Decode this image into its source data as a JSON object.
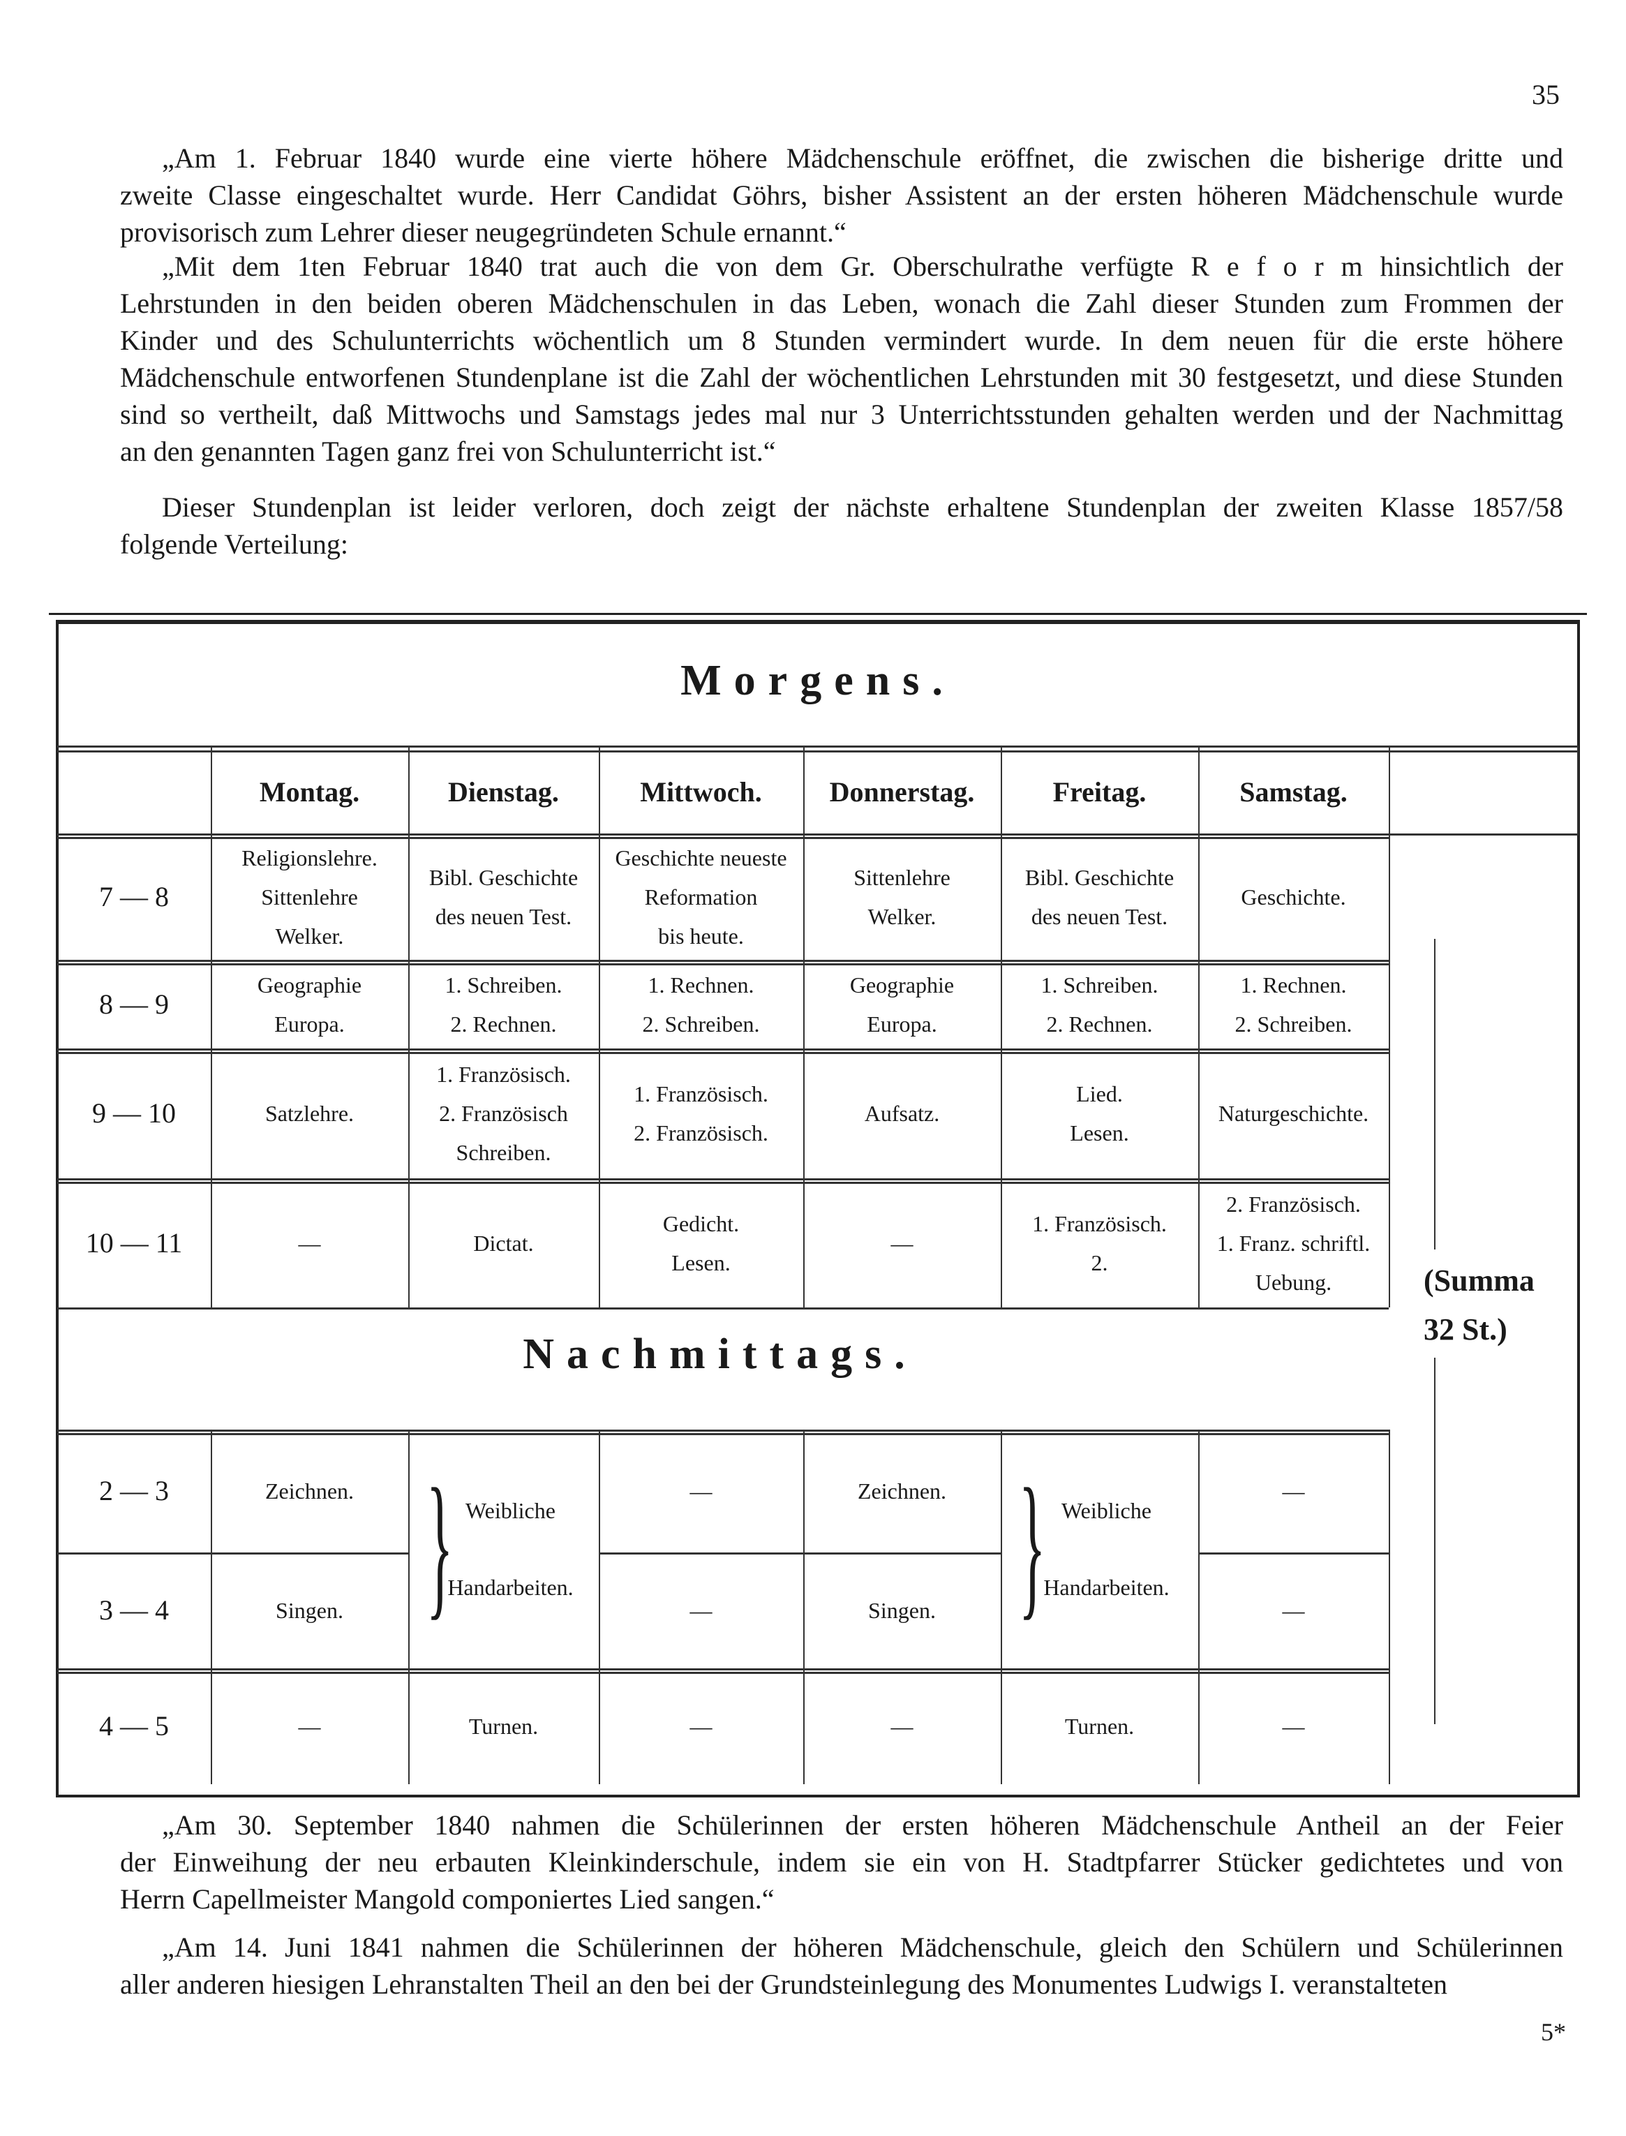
{
  "page_number": "35",
  "footer_mark": "5*",
  "paragraphs_top": [
    [
      "„Am 1. Februar 1840 wurde eine vierte höhere Mädchenschule eröffnet, die zwischen die bisherige dritte und",
      "zweite Classe eingeschaltet wurde.  Herr Candidat Göhrs, bisher Assistent an der ersten höheren Mädchenschule wurde",
      "provisorisch zum Lehrer dieser neugegründeten Schule ernannt.“"
    ],
    [
      "„Mit dem 1ten Februar 1840 trat auch die von dem Gr. Oberschulrathe verfügte R e f o r m hinsichtlich der",
      "Lehrstunden in den beiden oberen Mädchenschulen in das Leben, wonach die Zahl dieser Stunden zum Frommen der",
      "Kinder und des Schulunterrichts wöchentlich um 8 Stunden vermindert wurde. In dem neuen für die erste höhere",
      "Mädchenschule entworfenen Stundenplane ist die Zahl der wöchentlichen Lehrstunden mit 30 festgesetzt, und diese Stunden",
      "sind so vertheilt, daß Mittwochs und Samstags jedes mal nur 3 Unterrichtsstunden gehalten werden und der Nachmittag",
      "an den genannten Tagen ganz frei von Schulunterricht ist.“"
    ],
    [
      "Dieser Stundenplan ist leider verloren, doch zeigt der nächste erhaltene Stundenplan der zweiten Klasse 1857/58",
      "folgende Verteilung:"
    ]
  ],
  "paragraphs_bottom": [
    [
      "„Am 30. September 1840 nahmen die Schülerinnen der ersten höheren Mädchenschule Antheil an der Feier",
      "der Einweihung der neu erbauten Kleinkinderschule, indem sie ein von H. Stadtpfarrer Stücker gedichtetes und von",
      "Herrn Capellmeister Mangold componiertes Lied sangen.“"
    ],
    [
      "„Am 14. Juni 1841 nahmen die Schülerinnen der höheren Mädchenschule, gleich den Schülern und Schülerinnen",
      "aller anderen hiesigen Lehranstalten Theil an den bei der Grundsteinlegung des Monumentes Ludwigs I. veranstalteten"
    ]
  ],
  "timetable": {
    "morning_title": "Morgens.",
    "afternoon_title": "Nachmittags.",
    "days": [
      "Montag.",
      "Dienstag.",
      "Mittwoch.",
      "Donnerstag.",
      "Freitag.",
      "Samstag."
    ],
    "summa": [
      "(Summa",
      "32 St.)"
    ],
    "morning": [
      {
        "time": "7 — 8",
        "cells": [
          [
            "Religionslehre.",
            "Sittenlehre",
            "Welker."
          ],
          [
            "Bibl. Geschichte",
            "des neuen Test."
          ],
          [
            "Geschichte neueste",
            "Reformation",
            "bis heute."
          ],
          [
            "Sittenlehre",
            "Welker."
          ],
          [
            "Bibl. Geschichte",
            "des neuen Test."
          ],
          [
            "Geschichte."
          ]
        ]
      },
      {
        "time": "8 — 9",
        "cells": [
          [
            "Geographie",
            "Europa."
          ],
          [
            "1. Schreiben.",
            "2. Rechnen."
          ],
          [
            "1. Rechnen.",
            "2. Schreiben."
          ],
          [
            "Geographie",
            "Europa."
          ],
          [
            "1. Schreiben.",
            "2. Rechnen."
          ],
          [
            "1. Rechnen.",
            "2. Schreiben."
          ]
        ]
      },
      {
        "time": "9 — 10",
        "cells": [
          [
            "Satzlehre."
          ],
          [
            "1. Französisch.",
            "2. Französisch",
            "Schreiben."
          ],
          [
            "1. Französisch.",
            "2. Französisch."
          ],
          [
            "Aufsatz."
          ],
          [
            "Lied.",
            "Lesen."
          ],
          [
            "Naturgeschichte."
          ]
        ]
      },
      {
        "time": "10 — 11",
        "cells": [
          [
            "—"
          ],
          [
            "Dictat."
          ],
          [
            "Gedicht.",
            "Lesen."
          ],
          [
            "—"
          ],
          [
            "1. Französisch.",
            "2."
          ],
          [
            "2. Französisch.",
            "1. Franz. schriftl.",
            "Uebung."
          ]
        ]
      }
    ],
    "afternoon": [
      {
        "time": "2 — 3",
        "cells": [
          [
            "Zeichnen."
          ],
          null,
          [
            "—"
          ],
          [
            "Zeichnen."
          ],
          null,
          [
            "—"
          ]
        ]
      },
      {
        "time": "3 — 4",
        "cells": [
          [
            "Singen."
          ],
          null,
          [
            "—"
          ],
          [
            "Singen."
          ],
          null,
          [
            "—"
          ]
        ]
      },
      {
        "time": "4 — 5",
        "cells": [
          [
            "—"
          ],
          [
            "Turnen."
          ],
          [
            "—"
          ],
          [
            "—"
          ],
          [
            "Turnen."
          ],
          [
            "—"
          ]
        ]
      }
    ],
    "afternoon_merged": [
      "Weibliche",
      "Handarbeiten."
    ]
  }
}
